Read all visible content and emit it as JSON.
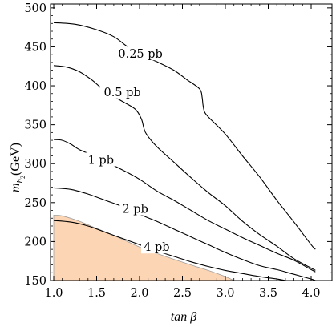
{
  "chart_data": {
    "type": "line",
    "title": "",
    "xlabel": "tan β",
    "ylabel": {
      "main": "m",
      "sub1": "h",
      "sub2": "2",
      "unit": "(GeV)"
    },
    "xlim": [
      1.0,
      4.05
    ],
    "ylim": [
      150,
      505
    ],
    "xticks": [
      "1.0",
      "1.5",
      "2.0",
      "2.5",
      "3.0",
      "3.5",
      "4.0"
    ],
    "xtick_values": [
      1.0,
      1.5,
      2.0,
      2.5,
      3.0,
      3.5,
      4.0
    ],
    "yticks": [
      "150",
      "200",
      "250",
      "300",
      "350",
      "400",
      "450",
      "500"
    ],
    "ytick_values": [
      150,
      200,
      250,
      300,
      350,
      400,
      450,
      500
    ],
    "grid": false,
    "colors": {
      "region_fill": "#fcd5b5",
      "region_edge": "#a0a0a0",
      "contour": "#000000"
    },
    "shaded_region": {
      "boundary": [
        [
          1.0,
          234
        ],
        [
          1.1,
          233
        ],
        [
          1.3,
          226
        ],
        [
          1.5,
          217
        ],
        [
          1.8,
          203
        ],
        [
          2.0,
          193
        ],
        [
          2.3,
          181
        ],
        [
          2.6,
          170
        ],
        [
          2.8,
          163
        ],
        [
          3.0,
          155
        ],
        [
          3.1,
          150
        ]
      ]
    },
    "series": [
      {
        "name": "0.25 pb",
        "points": [
          [
            1.0,
            481
          ],
          [
            1.25,
            479
          ],
          [
            1.5,
            472
          ],
          [
            1.7,
            463
          ],
          [
            1.85,
            451
          ],
          [
            2.0,
            440
          ],
          [
            2.2,
            431
          ],
          [
            2.4,
            420
          ],
          [
            2.55,
            408
          ],
          [
            2.7,
            396
          ],
          [
            2.73,
            385
          ],
          [
            2.74,
            375
          ],
          [
            2.76,
            366
          ],
          [
            2.82,
            358
          ],
          [
            3.0,
            338
          ],
          [
            3.2,
            310
          ],
          [
            3.4,
            283
          ],
          [
            3.6,
            253
          ],
          [
            3.8,
            225
          ],
          [
            4.0,
            196
          ],
          [
            4.05,
            190
          ]
        ]
      },
      {
        "name": "0.5 pb",
        "points": [
          [
            1.0,
            426
          ],
          [
            1.15,
            424
          ],
          [
            1.3,
            418
          ],
          [
            1.45,
            407
          ],
          [
            1.6,
            393
          ],
          [
            1.8,
            380
          ],
          [
            1.95,
            370
          ],
          [
            2.02,
            358
          ],
          [
            2.05,
            346
          ],
          [
            2.08,
            338
          ],
          [
            2.2,
            322
          ],
          [
            2.4,
            302
          ],
          [
            2.6,
            282
          ],
          [
            2.8,
            263
          ],
          [
            3.0,
            246
          ],
          [
            3.2,
            226
          ],
          [
            3.4,
            209
          ],
          [
            3.6,
            194
          ],
          [
            3.8,
            178
          ],
          [
            4.0,
            166
          ],
          [
            4.05,
            163
          ]
        ]
      },
      {
        "name": "1 pb",
        "points": [
          [
            1.0,
            331
          ],
          [
            1.1,
            330
          ],
          [
            1.2,
            325
          ],
          [
            1.3,
            318
          ],
          [
            1.45,
            311
          ],
          [
            1.6,
            303
          ],
          [
            1.8,
            292
          ],
          [
            2.0,
            280
          ],
          [
            2.2,
            265
          ],
          [
            2.4,
            253
          ],
          [
            2.6,
            240
          ],
          [
            2.8,
            227
          ],
          [
            3.0,
            216
          ],
          [
            3.2,
            205
          ],
          [
            3.4,
            195
          ],
          [
            3.6,
            185
          ],
          [
            3.8,
            176
          ],
          [
            4.0,
            164
          ],
          [
            4.05,
            161
          ]
        ]
      },
      {
        "name": "2 pb",
        "points": [
          [
            1.0,
            269
          ],
          [
            1.2,
            267
          ],
          [
            1.4,
            261
          ],
          [
            1.6,
            253
          ],
          [
            1.8,
            245
          ],
          [
            2.0,
            235
          ],
          [
            2.2,
            226
          ],
          [
            2.4,
            216
          ],
          [
            2.6,
            206
          ],
          [
            2.8,
            196
          ],
          [
            3.0,
            186
          ],
          [
            3.2,
            177
          ],
          [
            3.4,
            169
          ],
          [
            3.6,
            164
          ],
          [
            3.8,
            158
          ],
          [
            4.0,
            152
          ],
          [
            4.05,
            150
          ]
        ]
      },
      {
        "name": "4 pb",
        "points": [
          [
            1.0,
            227
          ],
          [
            1.2,
            225
          ],
          [
            1.4,
            220
          ],
          [
            1.6,
            212
          ],
          [
            1.8,
            204
          ],
          [
            2.0,
            196
          ],
          [
            2.2,
            188
          ],
          [
            2.4,
            181
          ],
          [
            2.6,
            174
          ],
          [
            2.8,
            168
          ],
          [
            3.0,
            163
          ],
          [
            3.2,
            159
          ],
          [
            3.4,
            155
          ],
          [
            3.6,
            152
          ],
          [
            3.7,
            150
          ]
        ]
      }
    ],
    "curve_labels": [
      {
        "name": "0.25 pb",
        "at": [
          2.01,
          441
        ]
      },
      {
        "name": "0.5 pb",
        "at": [
          1.8,
          392
        ]
      },
      {
        "name": "1 pb",
        "at": [
          1.55,
          305
        ]
      },
      {
        "name": "2 pb",
        "at": [
          1.95,
          242
        ]
      },
      {
        "name": "4 pb",
        "at": [
          2.2,
          193
        ]
      }
    ]
  }
}
